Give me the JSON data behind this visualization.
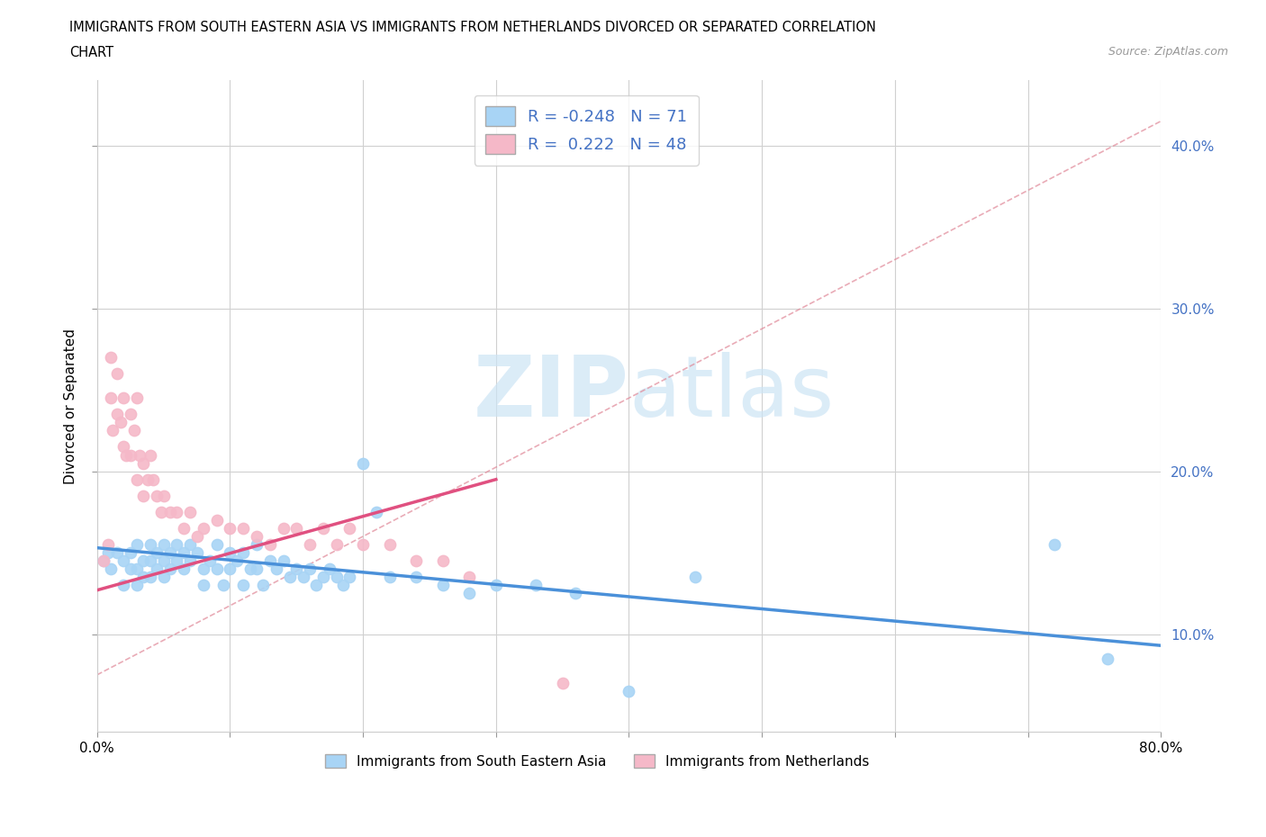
{
  "title_line1": "IMMIGRANTS FROM SOUTH EASTERN ASIA VS IMMIGRANTS FROM NETHERLANDS DIVORCED OR SEPARATED CORRELATION",
  "title_line2": "CHART",
  "source_text": "Source: ZipAtlas.com",
  "ylabel": "Divorced or Separated",
  "xlim": [
    0.0,
    0.8
  ],
  "ylim": [
    0.04,
    0.44
  ],
  "plot_ylim": [
    0.04,
    0.44
  ],
  "yticks": [
    0.1,
    0.2,
    0.3,
    0.4
  ],
  "xticks": [
    0.0,
    0.1,
    0.2,
    0.3,
    0.4,
    0.5,
    0.6,
    0.7,
    0.8
  ],
  "blue_R": -0.248,
  "blue_N": 71,
  "pink_R": 0.222,
  "pink_N": 48,
  "blue_color": "#a8d4f5",
  "pink_color": "#f5b8c8",
  "blue_line_color": "#4a90d9",
  "pink_line_color": "#e05080",
  "dash_line_color": "#e08898",
  "legend_text_color": "#4472C4",
  "right_axis_color": "#4472C4",
  "watermark_color": "#cce4f5",
  "blue_scatter_x": [
    0.005,
    0.008,
    0.01,
    0.015,
    0.02,
    0.02,
    0.025,
    0.025,
    0.03,
    0.03,
    0.03,
    0.035,
    0.035,
    0.04,
    0.04,
    0.04,
    0.045,
    0.045,
    0.05,
    0.05,
    0.05,
    0.055,
    0.055,
    0.06,
    0.06,
    0.065,
    0.065,
    0.07,
    0.07,
    0.075,
    0.08,
    0.08,
    0.085,
    0.09,
    0.09,
    0.095,
    0.1,
    0.1,
    0.105,
    0.11,
    0.11,
    0.115,
    0.12,
    0.12,
    0.125,
    0.13,
    0.135,
    0.14,
    0.145,
    0.15,
    0.155,
    0.16,
    0.165,
    0.17,
    0.175,
    0.18,
    0.185,
    0.19,
    0.2,
    0.21,
    0.22,
    0.24,
    0.26,
    0.28,
    0.3,
    0.33,
    0.36,
    0.4,
    0.45,
    0.72,
    0.76
  ],
  "blue_scatter_y": [
    0.145,
    0.15,
    0.14,
    0.15,
    0.145,
    0.13,
    0.15,
    0.14,
    0.155,
    0.14,
    0.13,
    0.145,
    0.135,
    0.155,
    0.145,
    0.135,
    0.15,
    0.14,
    0.155,
    0.145,
    0.135,
    0.15,
    0.14,
    0.155,
    0.145,
    0.15,
    0.14,
    0.155,
    0.145,
    0.15,
    0.14,
    0.13,
    0.145,
    0.155,
    0.14,
    0.13,
    0.15,
    0.14,
    0.145,
    0.15,
    0.13,
    0.14,
    0.155,
    0.14,
    0.13,
    0.145,
    0.14,
    0.145,
    0.135,
    0.14,
    0.135,
    0.14,
    0.13,
    0.135,
    0.14,
    0.135,
    0.13,
    0.135,
    0.205,
    0.175,
    0.135,
    0.135,
    0.13,
    0.125,
    0.13,
    0.13,
    0.125,
    0.065,
    0.135,
    0.155,
    0.085
  ],
  "pink_scatter_x": [
    0.005,
    0.008,
    0.01,
    0.01,
    0.012,
    0.015,
    0.015,
    0.018,
    0.02,
    0.02,
    0.022,
    0.025,
    0.025,
    0.028,
    0.03,
    0.03,
    0.032,
    0.035,
    0.035,
    0.038,
    0.04,
    0.042,
    0.045,
    0.048,
    0.05,
    0.055,
    0.06,
    0.065,
    0.07,
    0.075,
    0.08,
    0.09,
    0.1,
    0.11,
    0.12,
    0.13,
    0.14,
    0.15,
    0.16,
    0.17,
    0.18,
    0.19,
    0.2,
    0.22,
    0.24,
    0.26,
    0.28,
    0.35
  ],
  "pink_scatter_y": [
    0.145,
    0.155,
    0.27,
    0.245,
    0.225,
    0.26,
    0.235,
    0.23,
    0.245,
    0.215,
    0.21,
    0.235,
    0.21,
    0.225,
    0.245,
    0.195,
    0.21,
    0.205,
    0.185,
    0.195,
    0.21,
    0.195,
    0.185,
    0.175,
    0.185,
    0.175,
    0.175,
    0.165,
    0.175,
    0.16,
    0.165,
    0.17,
    0.165,
    0.165,
    0.16,
    0.155,
    0.165,
    0.165,
    0.155,
    0.165,
    0.155,
    0.165,
    0.155,
    0.155,
    0.145,
    0.145,
    0.135,
    0.07
  ],
  "blue_trend_x": [
    0.0,
    0.8
  ],
  "blue_trend_y": [
    0.153,
    0.093
  ],
  "pink_trend_x": [
    0.0,
    0.3
  ],
  "pink_trend_y": [
    0.127,
    0.195
  ],
  "dash_line_x": [
    0.0,
    0.8
  ],
  "dash_line_y": [
    0.075,
    0.415
  ]
}
